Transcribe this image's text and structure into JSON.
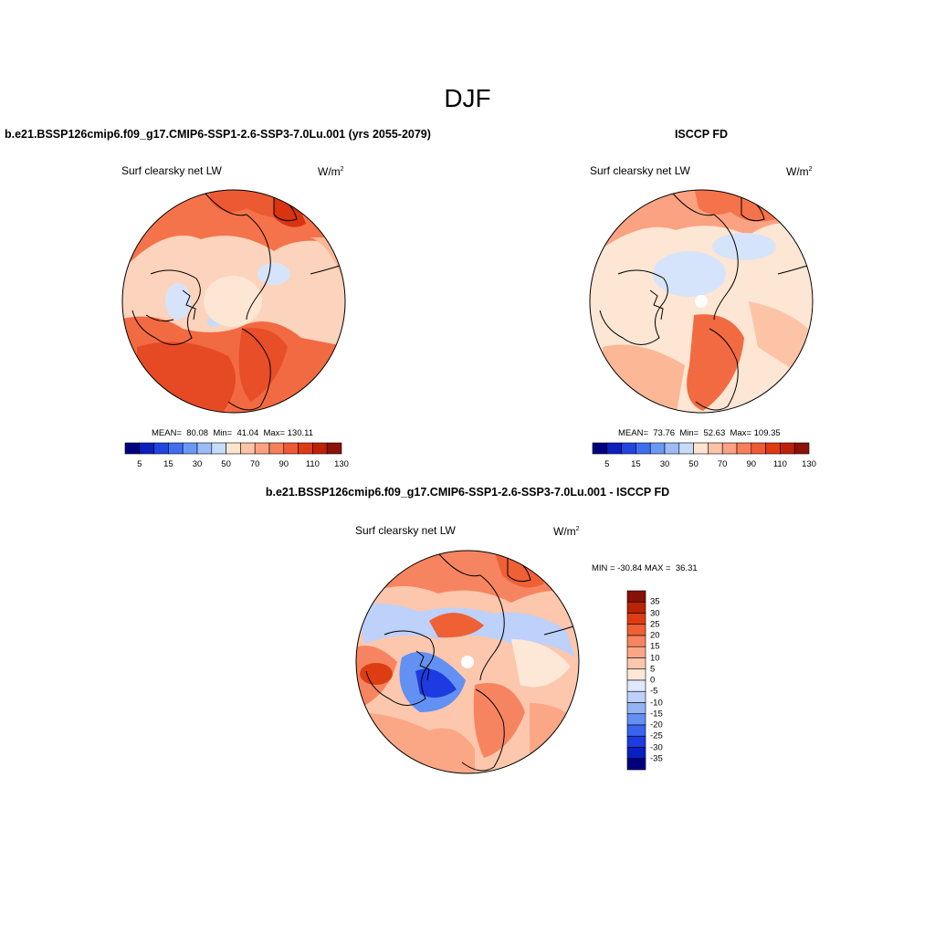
{
  "figure": {
    "title": "DJF",
    "colors": {
      "coastline": "#000000",
      "seq_scale": [
        "#00007f",
        "#0c1fbf",
        "#2244e0",
        "#3f6ff0",
        "#6a99f5",
        "#9bbcf8",
        "#c6dcfb",
        "#fbe4d0",
        "#fcc3a6",
        "#fba282",
        "#f77f5a",
        "#ef5a35",
        "#df3a14",
        "#bd2206",
        "#8a1208"
      ],
      "div_scale": [
        "#00007f",
        "#0a1fc0",
        "#1d3be0",
        "#3864ef",
        "#6390f3",
        "#93b4f6",
        "#bdd1fa",
        "#dfe9fb",
        "#fde8d8",
        "#fcc7ad",
        "#fba786",
        "#f78460",
        "#ef6035",
        "#de3d14",
        "#bb2306",
        "#871105"
      ]
    }
  },
  "panels": [
    {
      "id": "model",
      "title": "b.e21.BSSP126cmip6.f09_g17.CMIP6-SSP1-2.6-SSP3-7.0Lu.001 (yrs 2055-2079)",
      "variable": "Surf clearsky net LW",
      "units": "W/m",
      "units_sup": "2",
      "stats": "MEAN=  80.08  Min=  41.04  Max= 130.11",
      "colorbar_ticks": [
        "5",
        "15",
        "30",
        "50",
        "70",
        "90",
        "110",
        "130"
      ],
      "projection": "north-polar-stereographic"
    },
    {
      "id": "obs",
      "title": "ISCCP FD",
      "variable": "Surf clearsky net LW",
      "units": "W/m",
      "units_sup": "2",
      "stats": "MEAN=  73.76  Min=  52.63  Max= 109.35",
      "colorbar_ticks": [
        "5",
        "15",
        "30",
        "50",
        "70",
        "90",
        "110",
        "130"
      ],
      "projection": "north-polar-stereographic"
    },
    {
      "id": "diff",
      "title": "b.e21.BSSP126cmip6.f09_g17.CMIP6-SSP1-2.6-SSP3-7.0Lu.001 - ISCCP FD",
      "variable": "Surf clearsky net LW",
      "units": "W/m",
      "units_sup": "2",
      "stats": "MIN = -30.84 MAX =  36.31",
      "colorbar_ticks": [
        "35",
        "30",
        "25",
        "20",
        "15",
        "10",
        "5",
        "0",
        "-5",
        "-10",
        "-15",
        "-20",
        "-25",
        "-30",
        "-35"
      ],
      "projection": "north-polar-stereographic"
    }
  ]
}
